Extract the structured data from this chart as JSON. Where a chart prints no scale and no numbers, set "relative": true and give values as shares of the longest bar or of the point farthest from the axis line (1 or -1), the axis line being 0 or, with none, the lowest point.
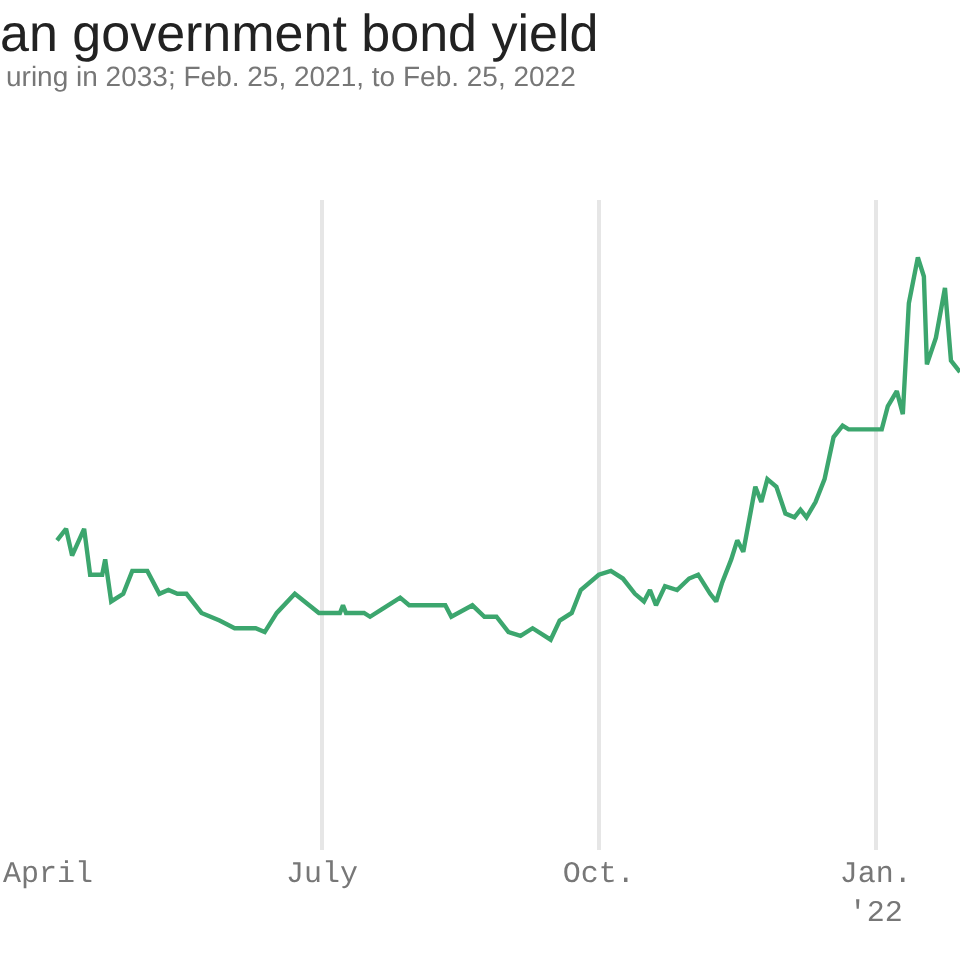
{
  "chart_data": {
    "type": "line",
    "title": "an government bond yield",
    "subtitle": "uring in 2033; Feb. 25, 2021, to Feb. 25, 2022",
    "relative": true,
    "grid": "x",
    "marker": "none",
    "line_style": "solid",
    "xlim": [
      "2021-04-01",
      "2022-01-29"
    ],
    "xticks": [
      {
        "value": "2021-04-01",
        "label": "April"
      },
      {
        "value": "2021-07-01",
        "label": "July"
      },
      {
        "value": "2021-10-01",
        "label": "Oct."
      },
      {
        "value": "2022-01-01",
        "label": "Jan.\n'22"
      }
    ],
    "x": [
      "2021-04-04",
      "2021-04-07",
      "2021-04-09",
      "2021-04-13",
      "2021-04-15",
      "2021-04-19",
      "2021-04-20",
      "2021-04-22",
      "2021-04-26",
      "2021-04-29",
      "2021-05-04",
      "2021-05-08",
      "2021-05-11",
      "2021-05-14",
      "2021-05-17",
      "2021-05-22",
      "2021-05-28",
      "2021-06-02",
      "2021-06-09",
      "2021-06-12",
      "2021-06-16",
      "2021-06-22",
      "2021-06-30",
      "2021-07-07",
      "2021-07-08",
      "2021-07-09",
      "2021-07-15",
      "2021-07-17",
      "2021-07-21",
      "2021-07-27",
      "2021-07-30",
      "2021-08-07",
      "2021-08-11",
      "2021-08-13",
      "2021-08-20",
      "2021-08-24",
      "2021-08-28",
      "2021-09-01",
      "2021-09-05",
      "2021-09-09",
      "2021-09-15",
      "2021-09-18",
      "2021-09-22",
      "2021-09-25",
      "2021-10-01",
      "2021-10-05",
      "2021-10-09",
      "2021-10-13",
      "2021-10-16",
      "2021-10-18",
      "2021-10-20",
      "2021-10-23",
      "2021-10-27",
      "2021-10-31",
      "2021-11-03",
      "2021-11-07",
      "2021-11-09",
      "2021-11-11",
      "2021-11-14",
      "2021-11-16",
      "2021-11-18",
      "2021-11-22",
      "2021-11-24",
      "2021-11-26",
      "2021-11-29",
      "2021-12-02",
      "2021-12-05",
      "2021-12-07",
      "2021-12-09",
      "2021-12-12",
      "2021-12-15",
      "2021-12-18",
      "2021-12-21",
      "2021-12-23",
      "2021-12-31",
      "2022-01-03",
      "2022-01-05",
      "2022-01-08",
      "2022-01-10",
      "2022-01-12",
      "2022-01-15",
      "2022-01-17",
      "2022-01-18",
      "2022-01-21",
      "2022-01-24",
      "2022-01-26",
      "2022-01-29"
    ],
    "series": [
      {
        "color": "#3ca66e",
        "values": [
          0.26,
          0.29,
          0.22,
          0.29,
          0.17,
          0.17,
          0.21,
          0.1,
          0.12,
          0.18,
          0.18,
          0.12,
          0.13,
          0.12,
          0.12,
          0.07,
          0.05,
          0.03,
          0.03,
          0.02,
          0.07,
          0.12,
          0.07,
          0.07,
          0.09,
          0.07,
          0.07,
          0.06,
          0.08,
          0.11,
          0.09,
          0.09,
          0.09,
          0.06,
          0.09,
          0.06,
          0.06,
          0.02,
          0.01,
          0.03,
          0,
          0.05,
          0.07,
          0.13,
          0.17,
          0.18,
          0.16,
          0.12,
          0.1,
          0.13,
          0.09,
          0.14,
          0.13,
          0.16,
          0.17,
          0.12,
          0.1,
          0.15,
          0.21,
          0.26,
          0.23,
          0.4,
          0.36,
          0.42,
          0.4,
          0.33,
          0.32,
          0.34,
          0.32,
          0.36,
          0.42,
          0.53,
          0.56,
          0.55,
          0.55,
          0.55,
          0.61,
          0.65,
          0.59,
          0.88,
          1,
          0.95,
          0.72,
          0.79,
          0.92,
          0.73,
          0.7
        ]
      }
    ]
  }
}
